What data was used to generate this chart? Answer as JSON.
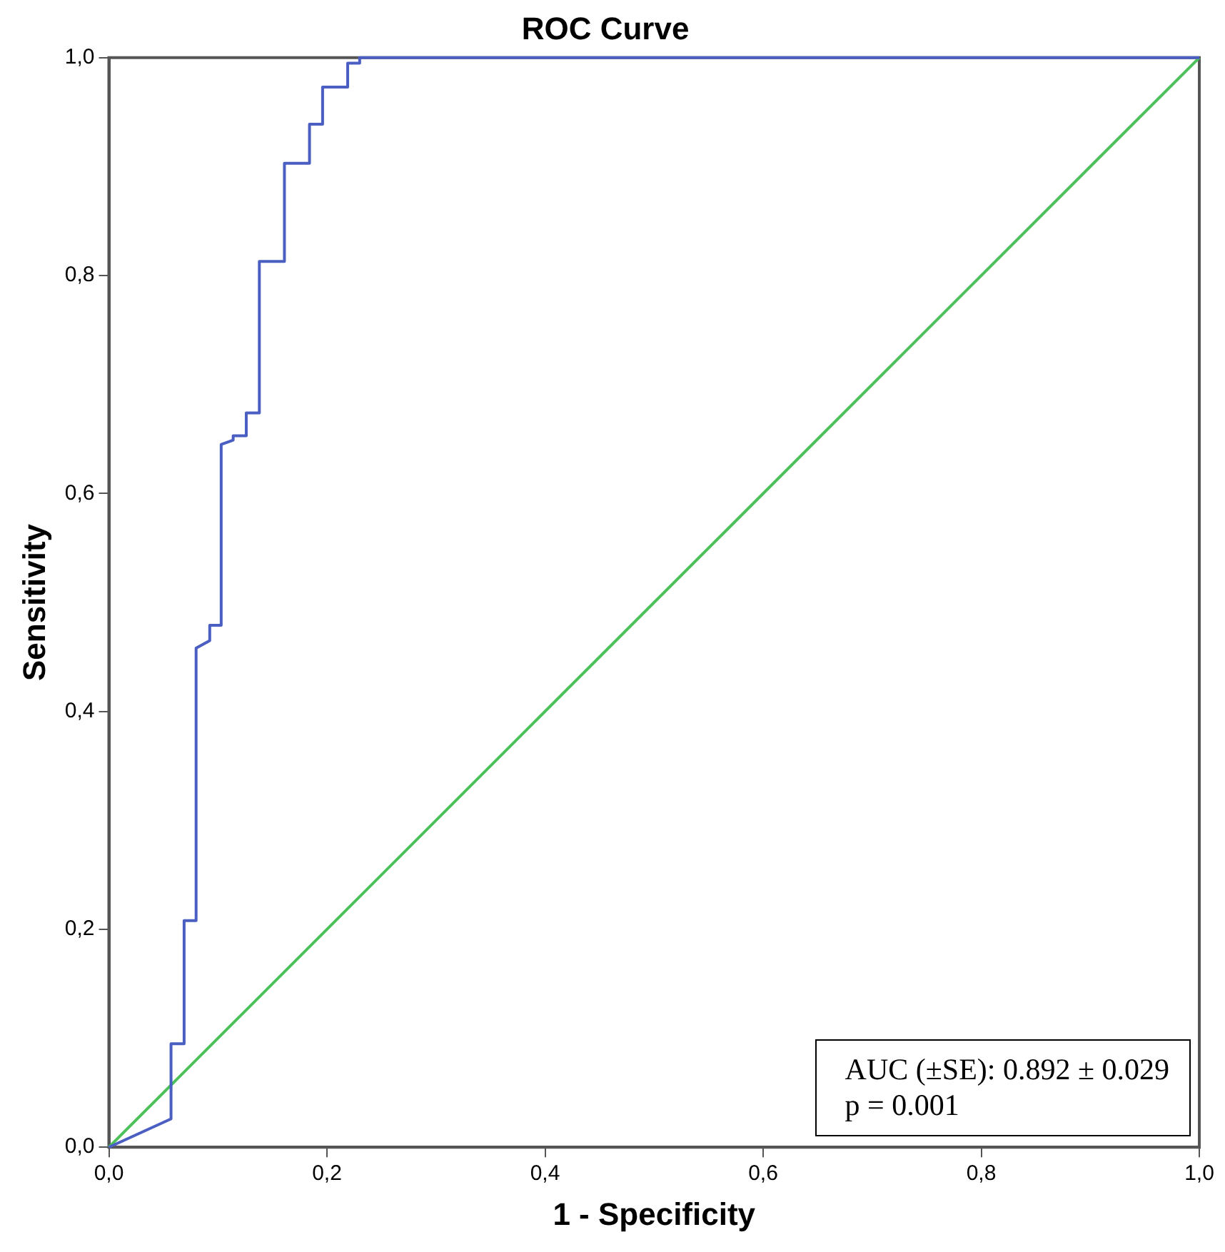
{
  "chart_data": {
    "type": "line",
    "title": "ROC Curve",
    "xlabel": "1 - Specificity",
    "ylabel": "Sensitivity",
    "xlim": [
      0,
      1
    ],
    "ylim": [
      0,
      1
    ],
    "xticks": [
      {
        "value": 0,
        "label": "0,0"
      },
      {
        "value": 0.2,
        "label": "0,2"
      },
      {
        "value": 0.4,
        "label": "0,4"
      },
      {
        "value": 0.6,
        "label": "0,6"
      },
      {
        "value": 0.8,
        "label": "0,8"
      },
      {
        "value": 1,
        "label": "1,0"
      }
    ],
    "yticks": [
      {
        "value": 0,
        "label": "0,0"
      },
      {
        "value": 0.2,
        "label": "0,2"
      },
      {
        "value": 0.4,
        "label": "0,4"
      },
      {
        "value": 0.6,
        "label": "0,6"
      },
      {
        "value": 0.8,
        "label": "0,8"
      },
      {
        "value": 1,
        "label": "1,0"
      }
    ],
    "marker": "none",
    "legend": false,
    "series": [
      {
        "color": "#4a5fc1",
        "x": [
          0,
          0.057,
          0.057,
          0.069,
          0.069,
          0.08,
          0.08,
          0.0925,
          0.0925,
          0.103,
          0.103,
          0.114,
          0.114,
          0.126,
          0.126,
          0.138,
          0.138,
          0.161,
          0.161,
          0.184,
          0.184,
          0.196,
          0.196,
          0.219,
          0.219,
          0.23,
          0.23,
          1
        ],
        "values": [
          0,
          0.026,
          0.095,
          0.095,
          0.208,
          0.208,
          0.458,
          0.465,
          0.479,
          0.479,
          0.645,
          0.649,
          0.653,
          0.653,
          0.674,
          0.674,
          0.813,
          0.813,
          0.903,
          0.903,
          0.939,
          0.939,
          0.973,
          0.973,
          0.995,
          0.995,
          1,
          1
        ]
      },
      {
        "color": "#4cc15a",
        "x": [
          0,
          1
        ],
        "values": [
          0,
          1
        ]
      }
    ],
    "annotations": [
      "AUC (±SE): 0.892 ± 0.029",
      "p = 0.001"
    ]
  }
}
